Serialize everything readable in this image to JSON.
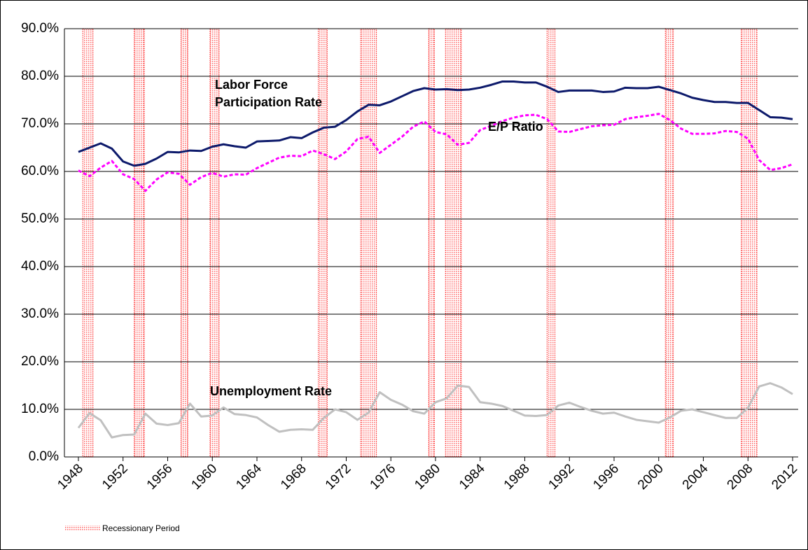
{
  "chart_data": {
    "type": "line",
    "x": [
      1948,
      1949,
      1950,
      1951,
      1952,
      1953,
      1954,
      1955,
      1956,
      1957,
      1958,
      1959,
      1960,
      1961,
      1962,
      1963,
      1964,
      1965,
      1966,
      1967,
      1968,
      1969,
      1970,
      1971,
      1972,
      1973,
      1974,
      1975,
      1976,
      1977,
      1978,
      1979,
      1980,
      1981,
      1982,
      1983,
      1984,
      1985,
      1986,
      1987,
      1988,
      1989,
      1990,
      1991,
      1992,
      1993,
      1994,
      1995,
      1996,
      1997,
      1998,
      1999,
      2000,
      2001,
      2002,
      2003,
      2004,
      2005,
      2006,
      2007,
      2008,
      2009,
      2010,
      2011,
      2012
    ],
    "xlim": [
      1947.5,
      2012.5
    ],
    "xticks": [
      1948,
      1952,
      1956,
      1960,
      1964,
      1968,
      1972,
      1976,
      1980,
      1984,
      1988,
      1992,
      1996,
      2000,
      2004,
      2008,
      2012
    ],
    "ylim": [
      0,
      90
    ],
    "yticks": [
      {
        "value": 0,
        "label": "0.0%"
      },
      {
        "value": 10,
        "label": "10.0%"
      },
      {
        "value": 20,
        "label": "20.0%"
      },
      {
        "value": 30,
        "label": "30.0%"
      },
      {
        "value": 40,
        "label": "40.0%"
      },
      {
        "value": 50,
        "label": "50.0%"
      },
      {
        "value": 60,
        "label": "60.0%"
      },
      {
        "value": 70,
        "label": "70.0%"
      },
      {
        "value": 80,
        "label": "80.0%"
      },
      {
        "value": 90,
        "label": "90.0%"
      }
    ],
    "grid": true,
    "series": [
      {
        "label": [
          "Labor Force",
          "Participation Rate"
        ],
        "color": "#0d1a6b",
        "style": "solid",
        "values": [
          64.1,
          65.0,
          65.9,
          64.8,
          62.1,
          61.2,
          61.6,
          62.7,
          64.1,
          64.0,
          64.4,
          64.3,
          65.2,
          65.7,
          65.3,
          65.0,
          66.3,
          66.4,
          66.5,
          67.2,
          67.0,
          68.2,
          69.2,
          69.4,
          70.8,
          72.6,
          74.0,
          73.9,
          74.7,
          75.8,
          76.9,
          77.5,
          77.2,
          77.3,
          77.1,
          77.2,
          77.6,
          78.2,
          78.9,
          78.9,
          78.7,
          78.7,
          77.8,
          76.7,
          77.0,
          77.0,
          77.0,
          76.7,
          76.8,
          77.6,
          77.5,
          77.5,
          77.8,
          77.1,
          76.4,
          75.5,
          75.0,
          74.6,
          74.6,
          74.4,
          74.4,
          72.9,
          71.4,
          71.3,
          71.0
        ]
      },
      {
        "label": [
          "E/P Ratio"
        ],
        "color": "#ff00ff",
        "style": "dashed",
        "values": [
          60.2,
          59.0,
          60.8,
          62.2,
          59.4,
          58.4,
          55.9,
          58.3,
          59.8,
          59.5,
          57.2,
          58.8,
          59.7,
          58.9,
          59.4,
          59.3,
          60.7,
          61.8,
          62.9,
          63.3,
          63.2,
          64.4,
          63.6,
          62.6,
          64.2,
          66.8,
          67.3,
          63.9,
          65.6,
          67.3,
          69.4,
          70.5,
          68.3,
          67.8,
          65.6,
          66.0,
          68.7,
          69.6,
          70.6,
          71.3,
          71.8,
          71.9,
          71.0,
          68.4,
          68.3,
          68.9,
          69.5,
          69.7,
          69.8,
          71.0,
          71.4,
          71.7,
          72.1,
          70.8,
          69.0,
          67.9,
          67.9,
          68.0,
          68.5,
          68.3,
          66.9,
          62.4,
          60.3,
          60.7,
          61.5
        ]
      },
      {
        "label": [
          "Unemployment Rate"
        ],
        "color": "#c0c0c0",
        "style": "solid",
        "values": [
          6.1,
          9.2,
          7.7,
          4.1,
          4.6,
          4.7,
          9.1,
          7.0,
          6.7,
          7.1,
          11.2,
          8.5,
          8.7,
          10.4,
          9.0,
          8.8,
          8.3,
          6.7,
          5.3,
          5.7,
          5.8,
          5.7,
          8.2,
          10.0,
          9.4,
          7.8,
          9.3,
          13.6,
          12.0,
          11.0,
          9.6,
          9.1,
          11.5,
          12.3,
          15.0,
          14.7,
          11.5,
          11.2,
          10.7,
          9.7,
          8.7,
          8.6,
          8.8,
          10.8,
          11.4,
          10.5,
          9.7,
          9.1,
          9.3,
          8.5,
          7.8,
          7.5,
          7.2,
          8.3,
          9.7,
          10.0,
          9.4,
          8.8,
          8.2,
          8.2,
          10.3,
          14.8,
          15.5,
          14.6,
          13.2
        ]
      }
    ],
    "recessions": {
      "name": "Recessionary Period",
      "color": "#ff3333",
      "periods": [
        [
          1948.4,
          1949.3
        ],
        [
          1953.0,
          1953.9
        ],
        [
          1957.2,
          1957.8
        ],
        [
          1959.8,
          1960.6
        ],
        [
          1969.5,
          1970.3
        ],
        [
          1973.3,
          1974.7
        ],
        [
          1979.4,
          1979.9
        ],
        [
          1980.9,
          1982.3
        ],
        [
          1990.0,
          1990.7
        ],
        [
          2000.6,
          2001.3
        ],
        [
          2007.4,
          2008.8
        ]
      ]
    }
  }
}
